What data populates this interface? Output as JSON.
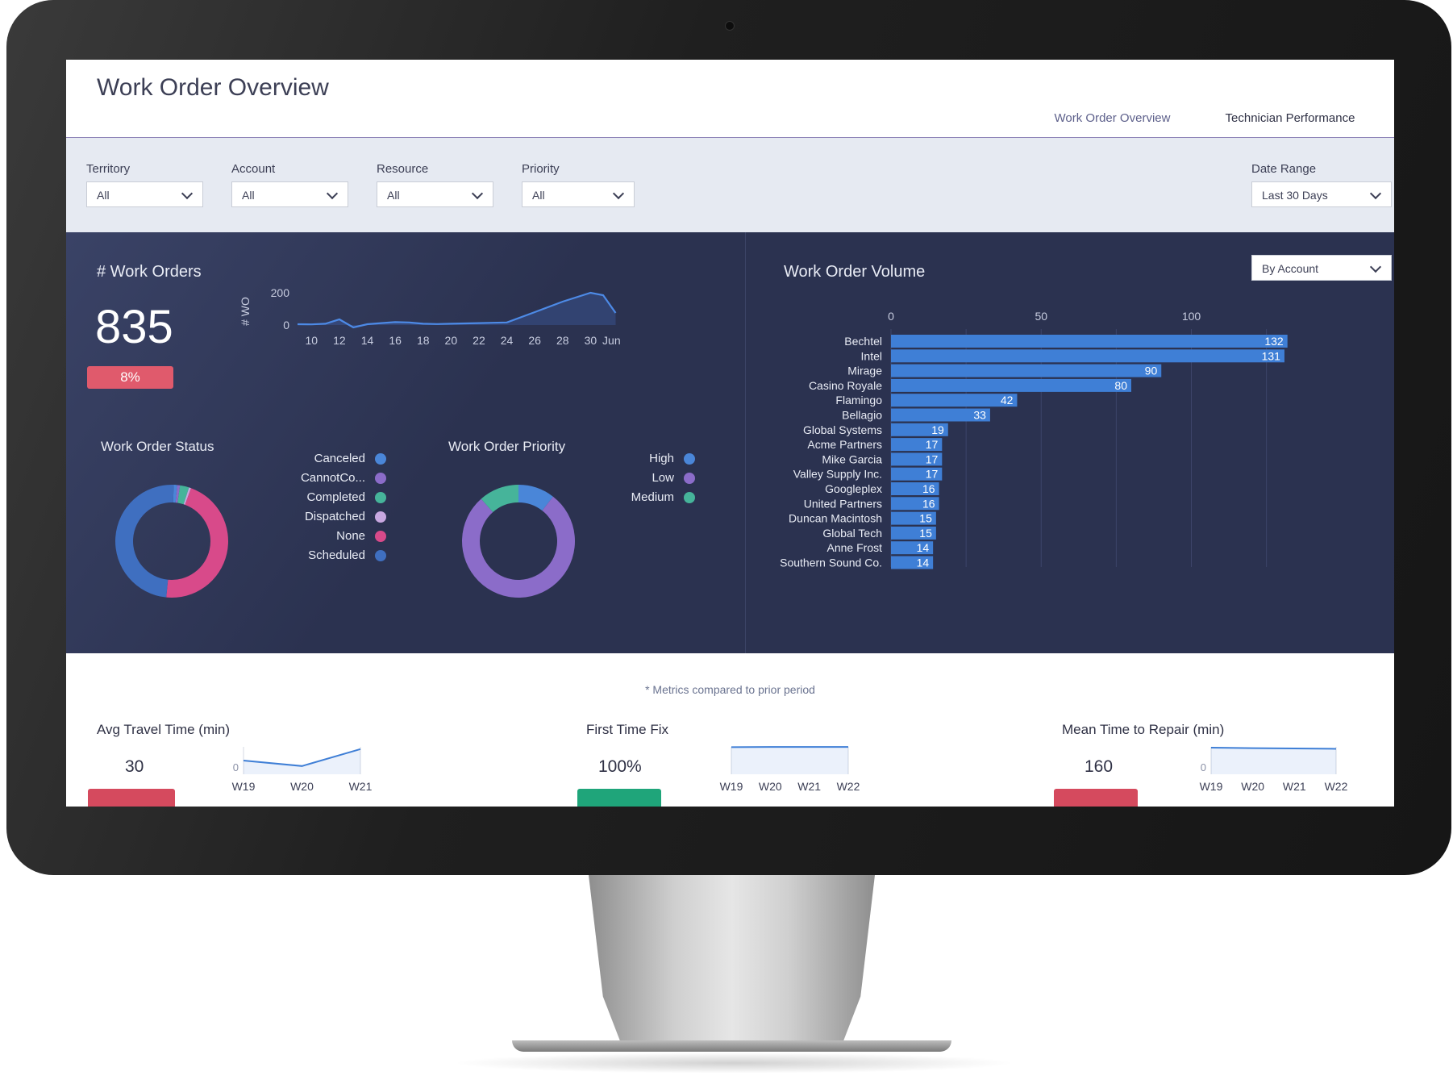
{
  "header": {
    "title": "Work Order Overview",
    "tabs": [
      {
        "label": "Work Order Overview",
        "active": true
      },
      {
        "label": "Technician Performance",
        "active": false
      }
    ]
  },
  "filters": {
    "territory": {
      "label": "Territory",
      "value": "All"
    },
    "account": {
      "label": "Account",
      "value": "All"
    },
    "resource": {
      "label": "Resource",
      "value": "All"
    },
    "priority": {
      "label": "Priority",
      "value": "All"
    },
    "date_range": {
      "label": "Date Range",
      "value": "Last 30 Days"
    }
  },
  "work_orders": {
    "title": "# Work Orders",
    "value": "835",
    "change": "8%",
    "change_color": "#e05a6c"
  },
  "work_order_status": {
    "title": "Work Order Status",
    "legend": [
      {
        "label": "Canceled",
        "color": "#4a86d8"
      },
      {
        "label": "CannotCo...",
        "color": "#8b6cc9"
      },
      {
        "label": "Completed",
        "color": "#46b49a"
      },
      {
        "label": "Dispatched",
        "color": "#c8a8e0"
      },
      {
        "label": "None",
        "color": "#d84a8a"
      },
      {
        "label": "Scheduled",
        "color": "#3f6fc0"
      }
    ]
  },
  "work_order_priority": {
    "title": "Work Order Priority",
    "legend": [
      {
        "label": "High",
        "color": "#4a86d8"
      },
      {
        "label": "Low",
        "color": "#8b6cc9"
      },
      {
        "label": "Medium",
        "color": "#46b49a"
      }
    ]
  },
  "volume": {
    "title": "Work Order Volume",
    "grouping": "By Account"
  },
  "lower": {
    "note": "* Metrics compared to prior period",
    "metrics": [
      {
        "title": "Avg Travel Time (min)",
        "value": "30",
        "badge_color": "#d54a5e"
      },
      {
        "title": "First Time Fix",
        "value": "100%",
        "badge_color": "#1fa57a"
      },
      {
        "title": "Mean Time to Repair (min)",
        "value": "160",
        "badge_color": "#d54a5e"
      }
    ]
  },
  "chart_data": [
    {
      "type": "area",
      "ylabel": "# WO",
      "y_ticks": [
        0,
        200
      ],
      "x_ticks": [
        "10",
        "12",
        "14",
        "16",
        "18",
        "20",
        "22",
        "24",
        "26",
        "28",
        "30",
        "Jun"
      ],
      "ylim": [
        0,
        240
      ],
      "points": [
        {
          "x": 9,
          "y": 5
        },
        {
          "x": 10,
          "y": 4
        },
        {
          "x": 11,
          "y": 8
        },
        {
          "x": 12,
          "y": 35
        },
        {
          "x": 13,
          "y": -15
        },
        {
          "x": 14,
          "y": 5
        },
        {
          "x": 15,
          "y": 12
        },
        {
          "x": 16,
          "y": 18
        },
        {
          "x": 17,
          "y": 16
        },
        {
          "x": 18,
          "y": 8
        },
        {
          "x": 19,
          "y": 6
        },
        {
          "x": 20,
          "y": 8
        },
        {
          "x": 21,
          "y": 10
        },
        {
          "x": 22,
          "y": 12
        },
        {
          "x": 23,
          "y": 14
        },
        {
          "x": 24,
          "y": 16
        },
        {
          "x": 26,
          "y": 80
        },
        {
          "x": 28,
          "y": 145
        },
        {
          "x": 30,
          "y": 200
        },
        {
          "x": 30.9,
          "y": 185
        },
        {
          "x": 31.8,
          "y": 75
        }
      ],
      "x_range": [
        9,
        32
      ]
    },
    {
      "type": "pie",
      "title": "Work Order Status",
      "donut": true,
      "slices": [
        {
          "label": "Canceled",
          "value": 1.0,
          "color": "#4a86d8"
        },
        {
          "label": "CannotCo...",
          "value": 0.8,
          "color": "#8b6cc9"
        },
        {
          "label": "Completed",
          "value": 2.6,
          "color": "#46b49a"
        },
        {
          "label": "Dispatched",
          "value": 0.6,
          "color": "#c8a8e0"
        },
        {
          "label": "None",
          "value": 46.0,
          "color": "#d84a8a"
        },
        {
          "label": "Scheduled",
          "value": 49.0,
          "color": "#3f6fc0"
        }
      ]
    },
    {
      "type": "pie",
      "title": "Work Order Priority",
      "donut": true,
      "slices": [
        {
          "label": "High",
          "value": 10.5,
          "color": "#4a86d8"
        },
        {
          "label": "Low",
          "value": 78.0,
          "color": "#8b6cc9"
        },
        {
          "label": "Medium",
          "value": 11.5,
          "color": "#46b49a"
        }
      ]
    },
    {
      "type": "bar",
      "title": "Work Order Volume",
      "orientation": "horizontal",
      "x_ticks": [
        0,
        50,
        100
      ],
      "xlim": [
        0,
        132
      ],
      "color": "#3f7fd6",
      "categories": [
        "Bechtel",
        "Intel",
        "Mirage",
        "Casino Royale",
        "Flamingo",
        "Bellagio",
        "Global Systems",
        "Acme Partners",
        "Mike Garcia",
        "Valley Supply Inc.",
        "Googleplex",
        "United Partners",
        "Duncan Macintosh",
        "Global Tech",
        "Anne Frost",
        "Southern Sound Co."
      ],
      "values": [
        132,
        131,
        90,
        80,
        42,
        33,
        19,
        17,
        17,
        17,
        16,
        16,
        15,
        15,
        14,
        14
      ]
    },
    {
      "type": "line",
      "title": "Avg Travel Time (min)",
      "y_ticks": [
        0
      ],
      "categories": [
        "W19",
        "W20",
        "W21"
      ],
      "values": [
        30,
        18,
        55
      ],
      "ylim": [
        0,
        60
      ]
    },
    {
      "type": "line",
      "title": "First Time Fix",
      "categories": [
        "W19",
        "W20",
        "W21",
        "W22"
      ],
      "values": [
        100,
        100.5,
        100.5,
        100.5
      ],
      "ylim": [
        0,
        101
      ]
    },
    {
      "type": "line",
      "title": "Mean Time to Repair (min)",
      "y_ticks": [
        0
      ],
      "categories": [
        "W19",
        "W20",
        "W21",
        "W22"
      ],
      "values": [
        160,
        157,
        155,
        153
      ],
      "ylim": [
        0,
        165
      ]
    }
  ]
}
